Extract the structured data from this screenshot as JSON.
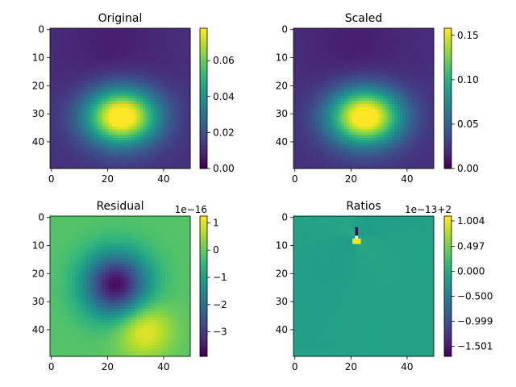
{
  "chart_data": [
    {
      "type": "heatmap",
      "title": "Original",
      "x_ticks": [
        0,
        20,
        40
      ],
      "y_ticks": [
        0,
        10,
        20,
        30,
        40
      ],
      "grid_size": [
        50,
        50
      ],
      "colormap": "viridis",
      "colorbar": {
        "range": [
          0,
          0.078
        ],
        "ticks": [
          "0.00",
          "0.02",
          "0.04",
          "0.06"
        ],
        "tick_values": [
          0,
          0.02,
          0.04,
          0.06
        ],
        "offset_label": ""
      },
      "field": {
        "kind": "blob",
        "peak": [
          25,
          31
        ],
        "min_at": [
          22,
          6
        ]
      }
    },
    {
      "type": "heatmap",
      "title": "Scaled",
      "x_ticks": [
        0,
        20,
        40
      ],
      "y_ticks": [
        0,
        10,
        20,
        30,
        40
      ],
      "grid_size": [
        50,
        50
      ],
      "colormap": "viridis",
      "colorbar": {
        "range": [
          0,
          0.158
        ],
        "ticks": [
          "0.00",
          "0.05",
          "0.10",
          "0.15"
        ],
        "tick_values": [
          0,
          0.05,
          0.1,
          0.15
        ],
        "offset_label": ""
      },
      "field": {
        "kind": "blob",
        "peak": [
          25,
          31
        ],
        "min_at": [
          22,
          6
        ]
      }
    },
    {
      "type": "heatmap",
      "title": "Residual",
      "x_ticks": [
        0,
        20,
        40
      ],
      "y_ticks": [
        0,
        10,
        20,
        30,
        40
      ],
      "grid_size": [
        50,
        50
      ],
      "colormap": "viridis",
      "colorbar": {
        "range": [
          -3.9,
          1.25
        ],
        "ticks": [
          "1",
          "0",
          "−1",
          "−2",
          "−3"
        ],
        "tick_values": [
          1,
          0,
          -1,
          -2,
          -3
        ],
        "offset_label": "1e−16"
      },
      "field": {
        "kind": "dipole",
        "low_at": [
          23,
          24
        ],
        "high_at": [
          33,
          40
        ]
      }
    },
    {
      "type": "heatmap",
      "title": "Ratios",
      "x_ticks": [
        0,
        20,
        40
      ],
      "y_ticks": [
        0,
        10,
        20,
        30,
        40
      ],
      "grid_size": [
        50,
        50
      ],
      "colormap": "viridis",
      "colorbar": {
        "range": [
          -1.7,
          1.1
        ],
        "ticks": [
          "1.004",
          "0.497",
          "0.000",
          "−0.500",
          "−0.999",
          "−1.501"
        ],
        "tick_values": [
          1.004,
          0.497,
          0.0,
          -0.5,
          -0.999,
          -1.501
        ],
        "offset_label": "1e−13+2"
      },
      "field": {
        "kind": "point",
        "at": [
          22,
          7
        ]
      }
    }
  ]
}
